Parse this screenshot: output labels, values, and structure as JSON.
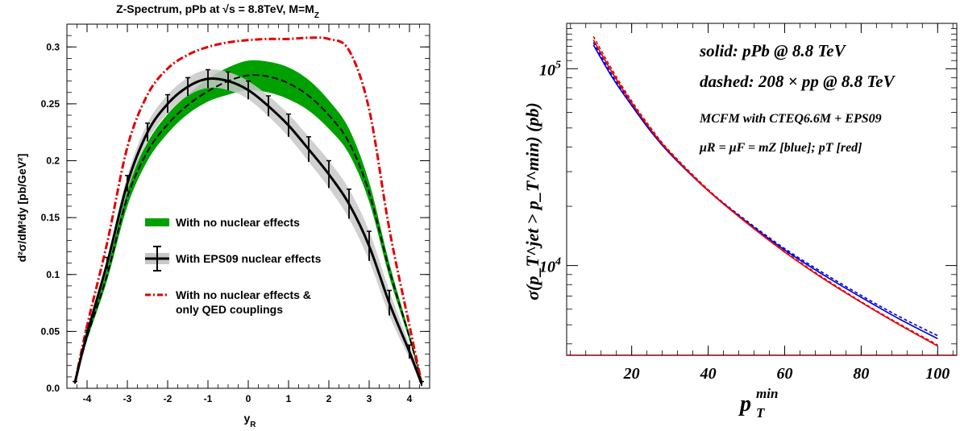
{
  "chart_data": [
    {
      "type": "line",
      "title": "Z-Spectrum, pPb at √s = 8.8TeV, M=M",
      "title_sub": "Z",
      "xlabel": "y",
      "xlabel_sub": "R",
      "ylabel": "d²σ/dM²dy   [pb/GeV²]",
      "xlim": [
        -4.5,
        4.5
      ],
      "ylim": [
        0,
        0.32
      ],
      "x_ticks": [
        "-4",
        "-3",
        "-2",
        "-1",
        "0",
        "1",
        "2",
        "3",
        "4"
      ],
      "y_ticks": [
        "0.0",
        "0.05",
        "0.1",
        "0.15",
        "0.2",
        "0.25",
        "0.3"
      ],
      "legend": [
        "With no nuclear effects",
        "With EPS09 nuclear effects",
        "With no nuclear effects &",
        "only QED couplings"
      ],
      "series": [
        {
          "name": "With no nuclear effects",
          "color": "#00a000",
          "x": [
            -4.3,
            -4.0,
            -3.5,
            -3.0,
            -2.5,
            -2.0,
            -1.5,
            -1.0,
            -0.5,
            0.0,
            0.5,
            1.0,
            1.5,
            2.0,
            2.5,
            3.0,
            3.5,
            4.0,
            4.3
          ],
          "y": [
            0.005,
            0.045,
            0.1,
            0.168,
            0.208,
            0.232,
            0.249,
            0.261,
            0.27,
            0.275,
            0.274,
            0.268,
            0.257,
            0.24,
            0.216,
            0.172,
            0.104,
            0.045,
            0.006
          ],
          "band_low": [
            0.004,
            0.042,
            0.095,
            0.16,
            0.2,
            0.224,
            0.241,
            0.252,
            0.258,
            0.262,
            0.26,
            0.254,
            0.244,
            0.228,
            0.206,
            0.164,
            0.098,
            0.042,
            0.005
          ],
          "band_high": [
            0.006,
            0.048,
            0.105,
            0.176,
            0.216,
            0.241,
            0.258,
            0.272,
            0.282,
            0.288,
            0.287,
            0.282,
            0.271,
            0.253,
            0.228,
            0.181,
            0.11,
            0.048,
            0.007
          ]
        },
        {
          "name": "With EPS09 nuclear effects",
          "color": "#000000",
          "x": [
            -4.3,
            -4.0,
            -3.5,
            -3.0,
            -2.5,
            -2.0,
            -1.5,
            -1.0,
            -0.5,
            0.0,
            0.5,
            1.0,
            1.5,
            2.0,
            2.5,
            3.0,
            3.5,
            4.0,
            4.3
          ],
          "y": [
            0.005,
            0.048,
            0.11,
            0.18,
            0.225,
            0.25,
            0.265,
            0.272,
            0.27,
            0.262,
            0.248,
            0.231,
            0.21,
            0.188,
            0.162,
            0.125,
            0.075,
            0.032,
            0.004
          ],
          "err": [
            0.001,
            0.003,
            0.005,
            0.007,
            0.008,
            0.008,
            0.008,
            0.008,
            0.008,
            0.008,
            0.009,
            0.01,
            0.011,
            0.012,
            0.013,
            0.013,
            0.011,
            0.006,
            0.002
          ]
        },
        {
          "name": "With no nuclear effects & only QED couplings",
          "color": "#e00000",
          "x": [
            -4.3,
            -4.0,
            -3.5,
            -3.0,
            -2.5,
            -2.0,
            -1.5,
            -1.0,
            -0.5,
            0.0,
            0.5,
            1.0,
            1.5,
            2.0,
            2.5,
            3.0,
            3.5,
            4.0,
            4.3
          ],
          "y": [
            0.005,
            0.055,
            0.128,
            0.212,
            0.258,
            0.281,
            0.293,
            0.3,
            0.304,
            0.306,
            0.307,
            0.307,
            0.308,
            0.307,
            0.297,
            0.245,
            0.14,
            0.055,
            0.005
          ]
        }
      ]
    },
    {
      "type": "line",
      "xlabel": "p",
      "xlabel_sup": "min",
      "xlabel_sub": "T",
      "ylabel": "σ(p_T^jet > p_T^min) (pb)",
      "xlim": [
        3,
        105
      ],
      "ylim": [
        3500,
        170000
      ],
      "y_scale": "log",
      "x_ticks": [
        "20",
        "40",
        "60",
        "80",
        "100"
      ],
      "y_ticks": [
        "10^4",
        "10^5"
      ],
      "annotations": [
        "solid: pPb @ 8.8 TeV",
        "dashed: 208 × pp @ 8.8 TeV",
        "MCFM with CTEQ6.6M + EPS09",
        "μR = μF = mZ [blue]; pT [red]"
      ],
      "series": [
        {
          "color": "#0000e0",
          "style": "solid",
          "x": [
            10,
            15,
            20,
            25,
            30,
            40,
            50,
            60,
            70,
            80,
            90,
            100
          ],
          "y": [
            132000,
            90000,
            65000,
            48000,
            37000,
            24000,
            16700,
            12000,
            9000,
            6900,
            5350,
            4250
          ]
        },
        {
          "color": "#0000e0",
          "style": "dashed",
          "x": [
            10,
            15,
            20,
            25,
            30,
            40,
            50,
            60,
            70,
            80,
            90,
            100
          ],
          "y": [
            136000,
            92000,
            66000,
            48800,
            37400,
            24200,
            16900,
            12200,
            9200,
            7050,
            5500,
            4400
          ]
        },
        {
          "color": "#e00000",
          "style": "solid",
          "x": [
            10,
            15,
            20,
            25,
            30,
            40,
            50,
            60,
            70,
            80,
            90,
            100
          ],
          "y": [
            140000,
            95000,
            67000,
            49000,
            37500,
            24000,
            16500,
            11700,
            8600,
            6500,
            5000,
            3900
          ]
        },
        {
          "color": "#e00000",
          "style": "dashed",
          "x": [
            10,
            15,
            20,
            25,
            30,
            40,
            50,
            60,
            70,
            80,
            90,
            100
          ],
          "y": [
            146000,
            98000,
            68500,
            50000,
            38000,
            24300,
            16600,
            11800,
            8700,
            6550,
            5050,
            3950
          ]
        }
      ]
    }
  ]
}
